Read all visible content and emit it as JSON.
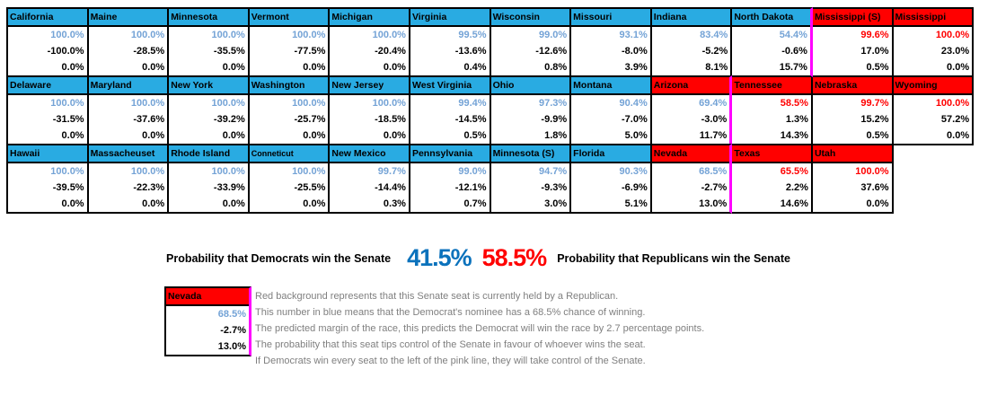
{
  "chart_data": {
    "type": "table",
    "columns": [
      "state",
      "incumbent_party",
      "dem_win_probability",
      "predicted_margin",
      "tipping_probability"
    ],
    "pink_line_meaning": "If Democrats win every seat to the left of the pink line, they will take control of the Senate.",
    "blocks": [
      [
        {
          "name": "California",
          "party": "dem",
          "win": "100.0%",
          "win_style": "blue",
          "margin": "-100.0%",
          "tip": "0.0%"
        },
        {
          "name": "Maine",
          "party": "dem",
          "win": "100.0%",
          "win_style": "blue",
          "margin": "-28.5%",
          "tip": "0.0%"
        },
        {
          "name": "Minnesota",
          "party": "dem",
          "win": "100.0%",
          "win_style": "blue",
          "margin": "-35.5%",
          "tip": "0.0%"
        },
        {
          "name": "Vermont",
          "party": "dem",
          "win": "100.0%",
          "win_style": "blue",
          "margin": "-77.5%",
          "tip": "0.0%"
        },
        {
          "name": "Michigan",
          "party": "dem",
          "win": "100.0%",
          "win_style": "blue",
          "margin": "-20.4%",
          "tip": "0.0%"
        },
        {
          "name": "Virginia",
          "party": "dem",
          "win": "99.5%",
          "win_style": "blue",
          "margin": "-13.6%",
          "tip": "0.4%"
        },
        {
          "name": "Wisconsin",
          "party": "dem",
          "win": "99.0%",
          "win_style": "blue",
          "margin": "-12.6%",
          "tip": "0.8%"
        },
        {
          "name": "Missouri",
          "party": "dem",
          "win": "93.1%",
          "win_style": "blue",
          "margin": "-8.0%",
          "tip": "3.9%"
        },
        {
          "name": "Indiana",
          "party": "dem",
          "win": "83.4%",
          "win_style": "blue",
          "margin": "-5.2%",
          "tip": "8.1%"
        },
        {
          "name": "North Dakota",
          "party": "dem",
          "win": "54.4%",
          "win_style": "blue",
          "margin": "-0.6%",
          "tip": "15.7%",
          "pink_line_right": true
        },
        {
          "name": "Mississippi (S)",
          "party": "rep",
          "win": "99.6%",
          "win_style": "red",
          "margin": "17.0%",
          "tip": "0.5%"
        },
        {
          "name": "Mississippi",
          "party": "rep",
          "win": "100.0%",
          "win_style": "red",
          "margin": "23.0%",
          "tip": "0.0%"
        }
      ],
      [
        {
          "name": "Delaware",
          "party": "dem",
          "win": "100.0%",
          "win_style": "blue",
          "margin": "-31.5%",
          "tip": "0.0%"
        },
        {
          "name": "Maryland",
          "party": "dem",
          "win": "100.0%",
          "win_style": "blue",
          "margin": "-37.6%",
          "tip": "0.0%"
        },
        {
          "name": "New York",
          "party": "dem",
          "win": "100.0%",
          "win_style": "blue",
          "margin": "-39.2%",
          "tip": "0.0%"
        },
        {
          "name": "Washington",
          "party": "dem",
          "win": "100.0%",
          "win_style": "blue",
          "margin": "-25.7%",
          "tip": "0.0%"
        },
        {
          "name": "New Jersey",
          "party": "dem",
          "win": "100.0%",
          "win_style": "blue",
          "margin": "-18.5%",
          "tip": "0.0%"
        },
        {
          "name": "West Virginia",
          "party": "dem",
          "win": "99.4%",
          "win_style": "blue",
          "margin": "-14.5%",
          "tip": "0.5%"
        },
        {
          "name": "Ohio",
          "party": "dem",
          "win": "97.3%",
          "win_style": "blue",
          "margin": "-9.9%",
          "tip": "1.8%"
        },
        {
          "name": "Montana",
          "party": "dem",
          "win": "90.4%",
          "win_style": "blue",
          "margin": "-7.0%",
          "tip": "5.0%"
        },
        {
          "name": "Arizona",
          "party": "rep",
          "win": "69.4%",
          "win_style": "blue",
          "margin": "-3.0%",
          "tip": "11.7%",
          "pink_line_right": true
        },
        {
          "name": "Tennessee",
          "party": "rep",
          "win": "58.5%",
          "win_style": "red",
          "margin": "1.3%",
          "tip": "14.3%"
        },
        {
          "name": "Nebraska",
          "party": "rep",
          "win": "99.7%",
          "win_style": "red",
          "margin": "15.2%",
          "tip": "0.5%"
        },
        {
          "name": "Wyoming",
          "party": "rep",
          "win": "100.0%",
          "win_style": "red",
          "margin": "57.2%",
          "tip": "0.0%"
        }
      ],
      [
        {
          "name": "Hawaii",
          "party": "dem",
          "win": "100.0%",
          "win_style": "blue",
          "margin": "-39.5%",
          "tip": "0.0%"
        },
        {
          "name": "Massacheuset",
          "party": "dem",
          "win": "100.0%",
          "win_style": "blue",
          "margin": "-22.3%",
          "tip": "0.0%"
        },
        {
          "name": "Rhode Island",
          "party": "dem",
          "win": "100.0%",
          "win_style": "blue",
          "margin": "-33.9%",
          "tip": "0.0%"
        },
        {
          "name": "Conneticut",
          "party": "dem",
          "win": "100.0%",
          "win_style": "blue",
          "margin": "-25.5%",
          "tip": "0.0%",
          "small_font": true
        },
        {
          "name": "New Mexico",
          "party": "dem",
          "win": "99.7%",
          "win_style": "blue",
          "margin": "-14.4%",
          "tip": "0.3%"
        },
        {
          "name": "Pennsylvania",
          "party": "dem",
          "win": "99.0%",
          "win_style": "blue",
          "margin": "-12.1%",
          "tip": "0.7%"
        },
        {
          "name": "Minnesota (S)",
          "party": "dem",
          "win": "94.7%",
          "win_style": "blue",
          "margin": "-9.3%",
          "tip": "3.0%"
        },
        {
          "name": "Florida",
          "party": "dem",
          "win": "90.3%",
          "win_style": "blue",
          "margin": "-6.9%",
          "tip": "5.1%"
        },
        {
          "name": "Nevada",
          "party": "rep",
          "win": "68.5%",
          "win_style": "blue",
          "margin": "-2.7%",
          "tip": "13.0%",
          "pink_line_right": true
        },
        {
          "name": "Texas",
          "party": "rep",
          "win": "65.5%",
          "win_style": "red",
          "margin": "2.2%",
          "tip": "14.6%"
        },
        {
          "name": "Utah",
          "party": "rep",
          "win": "100.0%",
          "win_style": "red",
          "margin": "37.6%",
          "tip": "0.0%"
        }
      ]
    ]
  },
  "summary": {
    "dem_label": "Probability that Democrats win the Senate",
    "dem_value": "41.5%",
    "rep_value": "58.5%",
    "rep_label": "Probability that Republicans win the Senate"
  },
  "legend": {
    "example": {
      "name": "Nevada",
      "win": "68.5%",
      "margin": "-2.7%",
      "tip": "13.0%"
    },
    "lines": [
      "Red background represents that this Senate seat is currently held by a Republican.",
      "This number in blue means that the Democrat's nominee has a 68.5% chance of winning.",
      "The predicted margin of the race, this predicts the Democrat will win the race by 2.7 percentage points.",
      "The probability that this seat tips control of the Senate in favour of whoever wins the seat.",
      "If Democrats win every seat to the left of the pink line, they will take control of the Senate."
    ]
  },
  "colors": {
    "dem_header": "#29ABE2",
    "rep_header": "#FF0000",
    "win_prob_blue_text": "#74A3D6",
    "win_prob_red_text": "#FF0000",
    "summary_blue": "#0B72BC",
    "summary_red": "#FF0000",
    "pink_control_line": "#FF00FF",
    "legend_text_gray": "#7F7F7F"
  }
}
